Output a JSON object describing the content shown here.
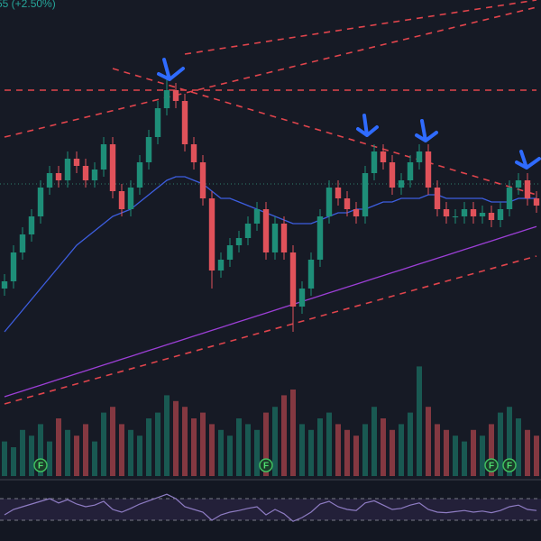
{
  "chart_data": {
    "type": "candlestick",
    "legend_value": "55 (+2.50%)",
    "xlim": [
      -0.5,
      59.5
    ],
    "ylim": [
      0,
      110
    ],
    "open": [
      30,
      32,
      40,
      45,
      50,
      58,
      62,
      60,
      66,
      64,
      60,
      63,
      70,
      57,
      52,
      58,
      65,
      72,
      80,
      85,
      82,
      70,
      65,
      55,
      35,
      38,
      42,
      44,
      48,
      52,
      40,
      48,
      40,
      25,
      30,
      38,
      50,
      58,
      55,
      52,
      50,
      62,
      68,
      65,
      58,
      60,
      65,
      68,
      58,
      52,
      50,
      50,
      52,
      50,
      51,
      49,
      52,
      58,
      60,
      55
    ],
    "high": [
      34,
      42,
      47,
      52,
      60,
      64,
      64,
      68,
      68,
      66,
      65,
      72,
      72,
      59,
      60,
      67,
      74,
      82,
      90,
      87,
      84,
      72,
      67,
      57,
      40,
      44,
      46,
      50,
      54,
      54,
      50,
      50,
      42,
      32,
      40,
      52,
      60,
      60,
      57,
      54,
      64,
      70,
      70,
      67,
      62,
      67,
      70,
      70,
      60,
      54,
      52,
      54,
      54,
      53,
      53,
      54,
      60,
      62,
      62,
      57
    ],
    "low": [
      28,
      30,
      38,
      43,
      48,
      56,
      58,
      58,
      62,
      58,
      58,
      61,
      55,
      50,
      50,
      56,
      63,
      70,
      78,
      80,
      68,
      63,
      53,
      30,
      33,
      36,
      40,
      42,
      46,
      38,
      38,
      38,
      18,
      23,
      28,
      36,
      48,
      53,
      50,
      48,
      48,
      60,
      63,
      56,
      56,
      58,
      63,
      56,
      50,
      48,
      48,
      48,
      48,
      48,
      47,
      47,
      50,
      56,
      53,
      51
    ],
    "close": [
      32,
      40,
      45,
      50,
      58,
      62,
      60,
      66,
      64,
      60,
      63,
      70,
      57,
      52,
      58,
      65,
      72,
      80,
      85,
      82,
      70,
      65,
      55,
      35,
      38,
      42,
      44,
      48,
      52,
      40,
      48,
      40,
      25,
      30,
      38,
      50,
      58,
      55,
      52,
      50,
      62,
      68,
      65,
      58,
      60,
      65,
      68,
      58,
      52,
      50,
      50,
      52,
      50,
      51,
      49,
      52,
      58,
      60,
      55,
      53
    ],
    "up_color": "#1e8e78",
    "down_color": "#e0525a",
    "moving_averages": [
      {
        "color": "#9c3fd6",
        "values": [
          0,
          0.8,
          1.6,
          2.4,
          3.2,
          4,
          4.8,
          5.6,
          6.4,
          7.2,
          8,
          8.8,
          9.6,
          10.4,
          11.2,
          12,
          12.8,
          13.6,
          14.4,
          15.2,
          16,
          16.8,
          17.6,
          18.4,
          19.2,
          20,
          20.8,
          21.6,
          22.4,
          23.2,
          24,
          24.8,
          25.6,
          26.4,
          27.2,
          28,
          28.8,
          29.6,
          30.4,
          31.2,
          32,
          32.8,
          33.6,
          34.4,
          35.2,
          36,
          36.8,
          37.6,
          38.4,
          39.2,
          40,
          40.8,
          41.6,
          42.4,
          43.2,
          44,
          44.8,
          45.6,
          46.4,
          47.2
        ]
      },
      {
        "color": "#3d5ee0",
        "values": [
          18,
          21,
          24,
          27,
          30,
          33,
          36,
          39,
          42,
          44,
          46,
          48,
          50,
          51,
          52,
          54,
          56,
          58,
          60,
          61,
          61,
          60,
          59,
          57,
          55,
          55,
          54,
          53,
          52,
          51,
          50,
          49,
          48,
          48,
          48,
          49,
          50,
          51,
          51,
          52,
          52,
          53,
          54,
          54,
          55,
          55,
          55,
          56,
          56,
          55,
          55,
          55,
          55,
          55,
          54,
          54,
          54,
          55,
          55,
          55
        ]
      }
    ],
    "trendlines": [
      {
        "color": "#e0444c",
        "x": [
          0,
          59
        ],
        "y": [
          85,
          85
        ]
      },
      {
        "color": "#e0444c",
        "x": [
          12,
          59
        ],
        "y": [
          91,
          56
        ]
      },
      {
        "color": "#e0444c",
        "x": [
          0,
          59
        ],
        "y": [
          72,
          108
        ]
      },
      {
        "color": "#e0444c",
        "x": [
          20,
          59
        ],
        "y": [
          95,
          110
        ]
      },
      {
        "color": "#e0444c",
        "x": [
          0,
          59
        ],
        "y": [
          -2,
          39
        ]
      }
    ],
    "volume": {
      "ylim": [
        0,
        100
      ],
      "values": [
        30,
        25,
        40,
        35,
        45,
        30,
        50,
        40,
        35,
        45,
        30,
        55,
        60,
        45,
        40,
        35,
        50,
        55,
        70,
        65,
        60,
        50,
        55,
        45,
        40,
        35,
        50,
        45,
        40,
        55,
        60,
        70,
        75,
        45,
        40,
        50,
        55,
        45,
        40,
        35,
        45,
        60,
        50,
        40,
        45,
        55,
        95,
        60,
        45,
        40,
        35,
        30,
        40,
        35,
        45,
        55,
        60,
        50,
        40,
        35
      ]
    },
    "events": [
      {
        "index": 4,
        "label": "F"
      },
      {
        "index": 29,
        "label": "F"
      },
      {
        "index": 54,
        "label": "F"
      },
      {
        "index": 56,
        "label": "F"
      }
    ],
    "rsi": {
      "ylim": [
        0,
        100
      ],
      "levels": [
        70,
        30
      ],
      "color": "#8e7cc3",
      "values": [
        40,
        50,
        55,
        60,
        65,
        70,
        62,
        68,
        60,
        55,
        58,
        65,
        50,
        45,
        52,
        60,
        66,
        72,
        78,
        70,
        55,
        50,
        45,
        30,
        40,
        45,
        48,
        52,
        55,
        40,
        50,
        42,
        28,
        35,
        45,
        60,
        65,
        55,
        50,
        48,
        62,
        66,
        58,
        50,
        52,
        58,
        62,
        50,
        45,
        44,
        46,
        48,
        45,
        47,
        44,
        48,
        55,
        58,
        50,
        48
      ]
    }
  }
}
